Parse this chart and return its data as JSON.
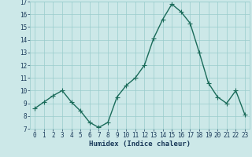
{
  "x": [
    0,
    1,
    2,
    3,
    4,
    5,
    6,
    7,
    8,
    9,
    10,
    11,
    12,
    13,
    14,
    15,
    16,
    17,
    18,
    19,
    20,
    21,
    22,
    23
  ],
  "y": [
    8.6,
    9.1,
    9.6,
    10.0,
    9.1,
    8.4,
    7.5,
    7.1,
    7.5,
    9.5,
    10.4,
    11.0,
    12.0,
    14.1,
    15.6,
    16.8,
    16.2,
    15.3,
    13.0,
    10.6,
    9.5,
    9.0,
    10.0,
    8.1
  ],
  "line_color": "#1a6b5a",
  "marker": "+",
  "marker_size": 4,
  "line_width": 1.0,
  "bg_color": "#cce8e8",
  "grid_color": "#99cccc",
  "xlabel": "Humidex (Indice chaleur)",
  "xlim": [
    -0.5,
    23.5
  ],
  "ylim": [
    7,
    17
  ],
  "yticks": [
    7,
    8,
    9,
    10,
    11,
    12,
    13,
    14,
    15,
    16,
    17
  ],
  "xticks": [
    0,
    1,
    2,
    3,
    4,
    5,
    6,
    7,
    8,
    9,
    10,
    11,
    12,
    13,
    14,
    15,
    16,
    17,
    18,
    19,
    20,
    21,
    22,
    23
  ],
  "tick_fontsize": 5.5,
  "xlabel_fontsize": 6.5,
  "label_color": "#1a3a5a"
}
